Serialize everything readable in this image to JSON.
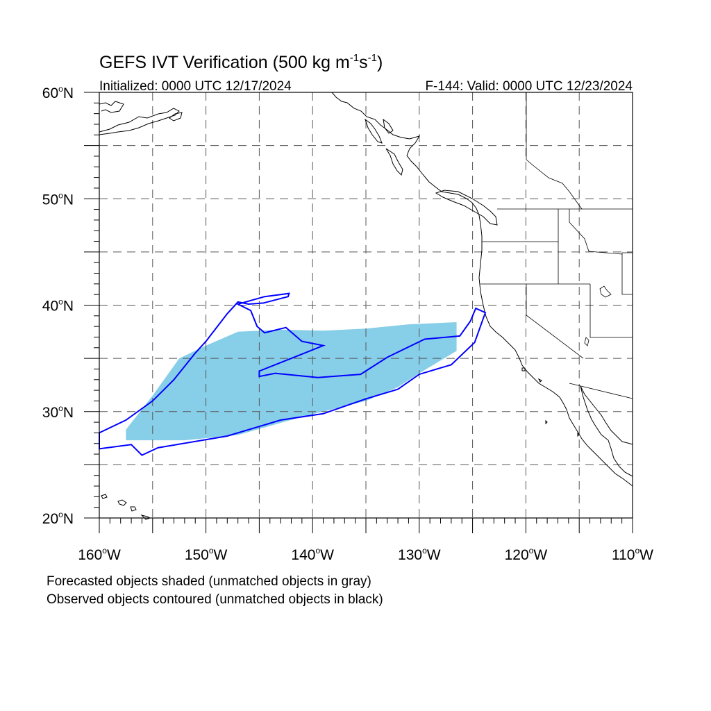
{
  "title_main": "GEFS IVT Verification (500 kg m",
  "title_sup1": "-1",
  "title_mid": "s",
  "title_sup2": "-1",
  "title_end": ")",
  "initialized": "Initialized: 0000 UTC 12/17/2024",
  "valid": "F-144: Valid: 0000 UTC 12/23/2024",
  "lat_labels": [
    {
      "lat": 60,
      "num": "60",
      "hem": "N"
    },
    {
      "lat": 50,
      "num": "50",
      "hem": "N"
    },
    {
      "lat": 40,
      "num": "40",
      "hem": "N"
    },
    {
      "lat": 30,
      "num": "30",
      "hem": "N"
    },
    {
      "lat": 20,
      "num": "20",
      "hem": "N"
    }
  ],
  "lon_labels": [
    {
      "lon": -160,
      "num": "160",
      "hem": "W"
    },
    {
      "lon": -150,
      "num": "150",
      "hem": "W"
    },
    {
      "lon": -140,
      "num": "140",
      "hem": "W"
    },
    {
      "lon": -130,
      "num": "130",
      "hem": "W"
    },
    {
      "lon": -120,
      "num": "120",
      "hem": "W"
    },
    {
      "lon": -110,
      "num": "110",
      "hem": "W"
    }
  ],
  "legend_line1": "Forecasted objects shaded (unmatched objects in gray)",
  "legend_line2": "Observed objects contoured (unmatched objects in black)",
  "map": {
    "lon_range": [
      -160,
      -110
    ],
    "lat_range": [
      20,
      60
    ],
    "grid_spacing_deg": 5,
    "forecast_color": "#87CEE8",
    "observed_color": "#0000FF",
    "coast_color": "#000000",
    "grid_color": "#555555"
  },
  "forecast_object": [
    [
      -157.5,
      27.3
    ],
    [
      -152,
      27.3
    ],
    [
      -147,
      27.8
    ],
    [
      -141,
      29.5
    ],
    [
      -137,
      30.5
    ],
    [
      -135,
      31
    ],
    [
      -132,
      32.3
    ],
    [
      -130,
      33.6
    ],
    [
      -128,
      34.8
    ],
    [
      -126.5,
      35.7
    ],
    [
      -126.5,
      38.4
    ],
    [
      -131,
      38.2
    ],
    [
      -135,
      37.8
    ],
    [
      -139,
      37.6
    ],
    [
      -143,
      37.7
    ],
    [
      -147,
      37.5
    ],
    [
      -150,
      36.2
    ],
    [
      -152.5,
      35.0
    ],
    [
      -155,
      31.5
    ],
    [
      -157.5,
      28.3
    ]
  ],
  "observed_object_outer": [
    [
      -160,
      26.5
    ],
    [
      -157,
      26.9
    ],
    [
      -156,
      25.9
    ],
    [
      -154.5,
      26.6
    ],
    [
      -148,
      27.7
    ],
    [
      -143,
      29.2
    ],
    [
      -139,
      29.8
    ],
    [
      -135,
      31.2
    ],
    [
      -132,
      32.1
    ],
    [
      -130,
      33.5
    ],
    [
      -127,
      34.4
    ],
    [
      -124.8,
      36.5
    ],
    [
      -123.8,
      39.3
    ],
    [
      -124.7,
      39.7
    ],
    [
      -125.2,
      38.5
    ],
    [
      -126.2,
      37.1
    ],
    [
      -129.5,
      36.8
    ],
    [
      -133,
      35.1
    ],
    [
      -135.5,
      33.5
    ],
    [
      -139.5,
      33.2
    ],
    [
      -143.5,
      33.6
    ],
    [
      -145,
      33.3
    ],
    [
      -145,
      33.8
    ],
    [
      -141.5,
      35.2
    ],
    [
      -139,
      36.2
    ],
    [
      -141,
      36.6
    ],
    [
      -142.5,
      37.9
    ],
    [
      -144.5,
      37.4
    ],
    [
      -145.2,
      38.0
    ],
    [
      -145.8,
      39.5
    ],
    [
      -147,
      40.1
    ],
    [
      -144.5,
      40.8
    ],
    [
      -142.2,
      41.1
    ],
    [
      -142.3,
      40.8
    ],
    [
      -144.6,
      40.2
    ],
    [
      -146,
      40.1
    ],
    [
      -147,
      40.3
    ],
    [
      -148,
      39.2
    ],
    [
      -150,
      36.6
    ],
    [
      -151,
      35.5
    ],
    [
      -153,
      33.0
    ],
    [
      -155,
      31.0
    ],
    [
      -157.5,
      29.2
    ],
    [
      -160,
      28.0
    ]
  ]
}
